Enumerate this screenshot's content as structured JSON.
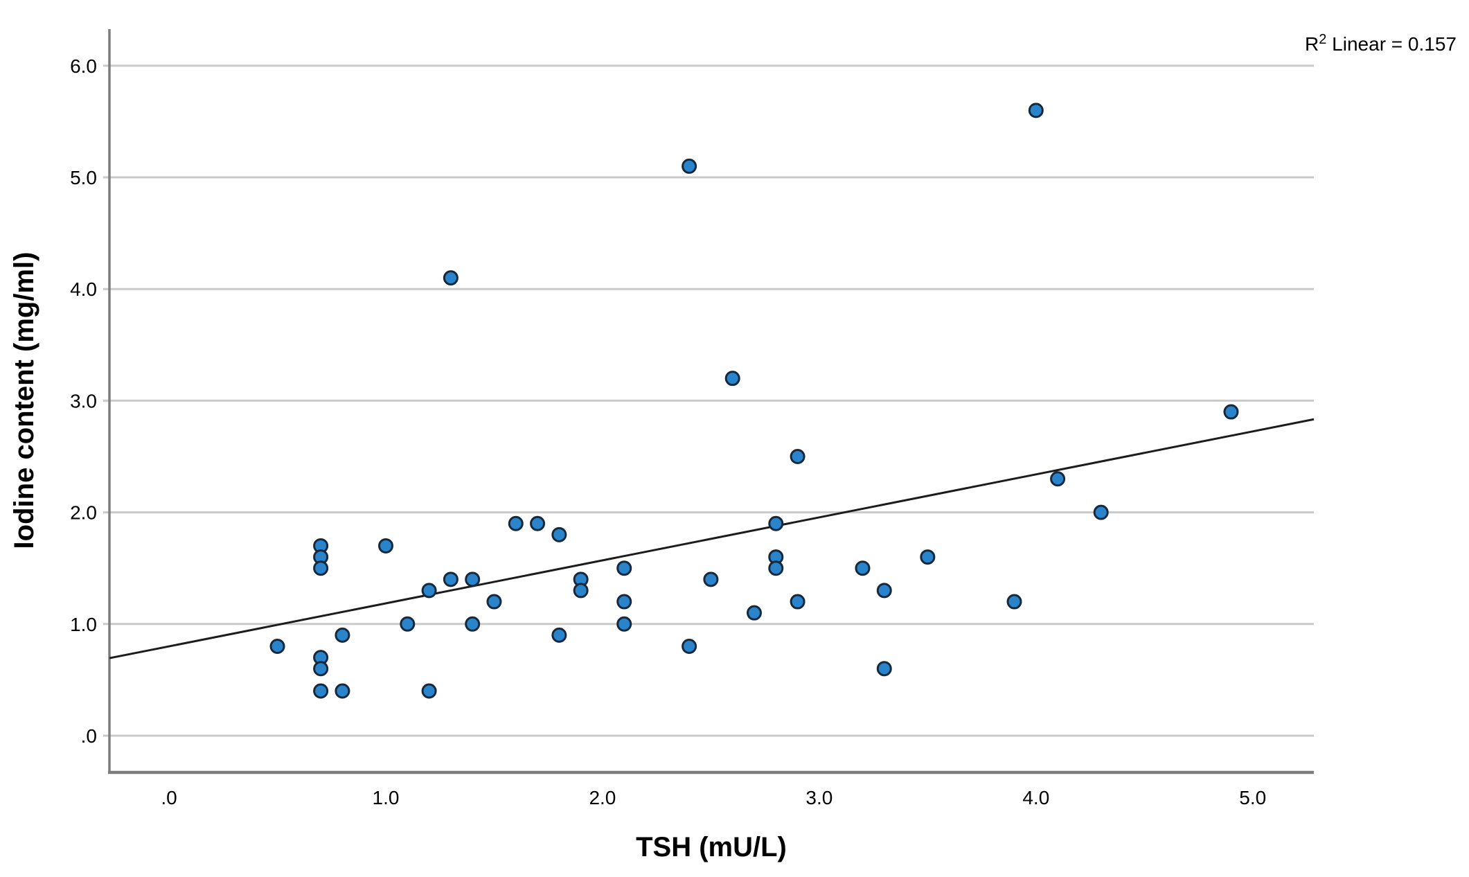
{
  "chart_data": {
    "type": "scatter",
    "title": "",
    "xlabel": "TSH (mU/L)",
    "ylabel": "Iodine content (mg/ml)",
    "annotation": {
      "base": "R",
      "sup": "2",
      "rest": " Linear = 0.157"
    },
    "r_squared": 0.157,
    "x_range": [
      -0.275,
      5.282
    ],
    "y_range": [
      -0.329,
      6.328
    ],
    "x_ticks": [
      {
        "v": 0,
        "label": ".0"
      },
      {
        "v": 1,
        "label": "1.0"
      },
      {
        "v": 2,
        "label": "2.0"
      },
      {
        "v": 3,
        "label": "3.0"
      },
      {
        "v": 4,
        "label": "4.0"
      },
      {
        "v": 5,
        "label": "5.0"
      }
    ],
    "y_ticks": [
      {
        "v": 6,
        "label": "6.0"
      },
      {
        "v": 5,
        "label": "5.0"
      },
      {
        "v": 4,
        "label": "4.0"
      },
      {
        "v": 3,
        "label": "3.0"
      },
      {
        "v": 2,
        "label": "2.0"
      },
      {
        "v": 1,
        "label": "1.0"
      },
      {
        "v": 0,
        "label": ".0"
      }
    ],
    "grid": true,
    "legend": "none",
    "regression": {
      "slope": 0.385,
      "intercept": 0.8
    },
    "points": [
      [
        0.5,
        0.8
      ],
      [
        0.7,
        1.7
      ],
      [
        0.7,
        1.6
      ],
      [
        0.7,
        1.5
      ],
      [
        0.7,
        0.7
      ],
      [
        0.7,
        0.6
      ],
      [
        0.7,
        0.4
      ],
      [
        0.8,
        0.9
      ],
      [
        0.8,
        0.4
      ],
      [
        1.0,
        1.7
      ],
      [
        1.1,
        1.0
      ],
      [
        1.2,
        1.3
      ],
      [
        1.2,
        0.4
      ],
      [
        1.3,
        4.1
      ],
      [
        1.3,
        1.4
      ],
      [
        1.4,
        1.4
      ],
      [
        1.4,
        1.0
      ],
      [
        1.5,
        1.2
      ],
      [
        1.6,
        1.9
      ],
      [
        1.7,
        1.9
      ],
      [
        1.8,
        1.8
      ],
      [
        1.8,
        0.9
      ],
      [
        1.9,
        1.4
      ],
      [
        1.9,
        1.3
      ],
      [
        2.1,
        1.5
      ],
      [
        2.1,
        1.2
      ],
      [
        2.1,
        1.0
      ],
      [
        2.4,
        5.1
      ],
      [
        2.4,
        0.8
      ],
      [
        2.5,
        1.4
      ],
      [
        2.6,
        3.2
      ],
      [
        2.7,
        1.1
      ],
      [
        2.8,
        1.9
      ],
      [
        2.8,
        1.6
      ],
      [
        2.8,
        1.5
      ],
      [
        2.9,
        2.5
      ],
      [
        2.9,
        1.2
      ],
      [
        3.2,
        1.5
      ],
      [
        3.3,
        1.3
      ],
      [
        3.3,
        0.6
      ],
      [
        3.5,
        1.6
      ],
      [
        3.9,
        1.2
      ],
      [
        4.0,
        5.6
      ],
      [
        4.1,
        2.3
      ],
      [
        4.3,
        2.0
      ],
      [
        4.9,
        2.9
      ]
    ],
    "colors": {
      "point_fill": "#2984cc",
      "point_stroke": "#16293b",
      "grid": "#cacaca",
      "axis": "#7d7d7d",
      "regression": "#1c1c1c",
      "text": "#000000"
    }
  }
}
